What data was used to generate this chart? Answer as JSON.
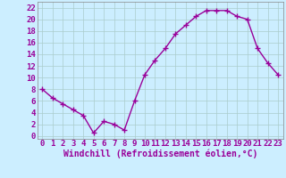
{
  "x": [
    0,
    1,
    2,
    3,
    4,
    5,
    6,
    7,
    8,
    9,
    10,
    11,
    12,
    13,
    14,
    15,
    16,
    17,
    18,
    19,
    20,
    21,
    22,
    23
  ],
  "y": [
    8,
    6.5,
    5.5,
    4.5,
    3.5,
    0.5,
    2.5,
    2.0,
    1.0,
    6.0,
    10.5,
    13.0,
    15.0,
    17.5,
    19.0,
    20.5,
    21.5,
    21.5,
    21.5,
    20.5,
    20.0,
    15.0,
    12.5,
    10.5
  ],
  "line_color": "#990099",
  "marker": "+",
  "marker_size": 4,
  "marker_lw": 1.0,
  "line_width": 1.0,
  "bg_color": "#cceeff",
  "grid_color": "#aacccc",
  "xlabel": "Windchill (Refroidissement éolien,°C)",
  "xlabel_fontsize": 7,
  "tick_fontsize": 6.5,
  "xlim": [
    -0.5,
    23.5
  ],
  "ylim": [
    -0.5,
    23
  ],
  "yticks": [
    0,
    2,
    4,
    6,
    8,
    10,
    12,
    14,
    16,
    18,
    20,
    22
  ],
  "xticks": [
    0,
    1,
    2,
    3,
    4,
    5,
    6,
    7,
    8,
    9,
    10,
    11,
    12,
    13,
    14,
    15,
    16,
    17,
    18,
    19,
    20,
    21,
    22,
    23
  ],
  "spine_color": "#888888"
}
